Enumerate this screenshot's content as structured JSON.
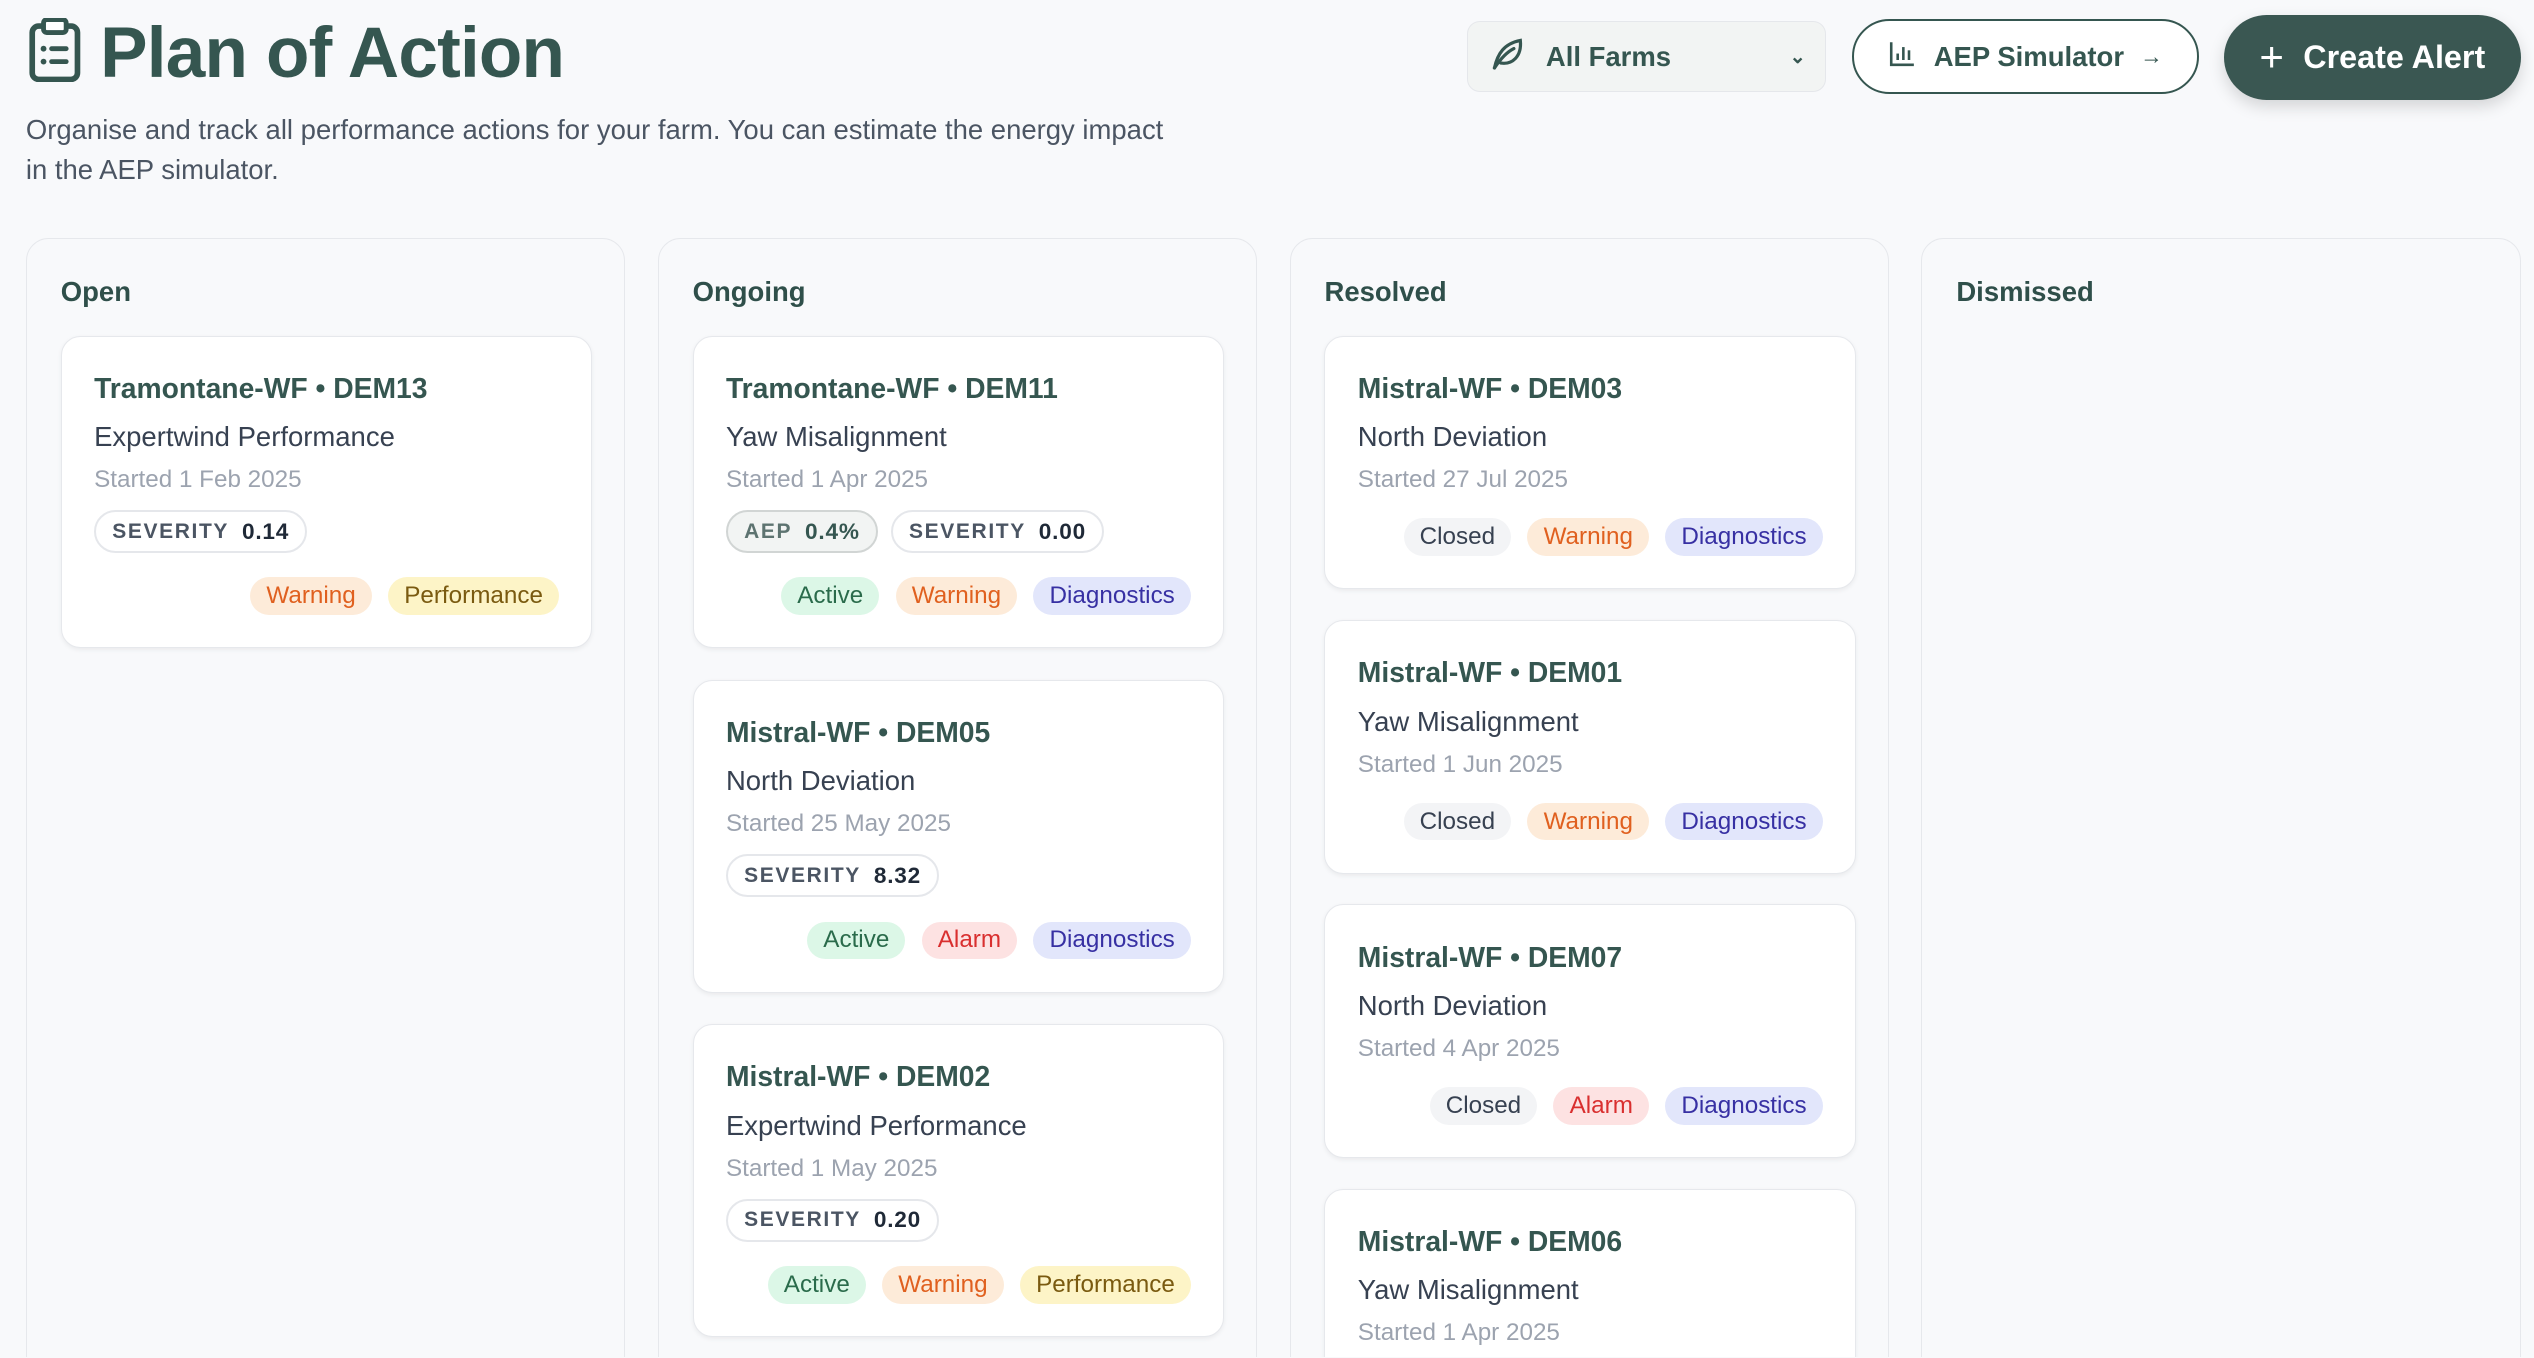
{
  "header": {
    "title": "Plan of Action",
    "description": "Organise and track all performance actions for your farm. You can estimate the energy impact in the AEP simulator.",
    "farm_select": "All Farms",
    "aep_button": "AEP Simulator",
    "create_button": "Create Alert"
  },
  "colors": {
    "accent": "#355650"
  },
  "columns": [
    {
      "title": "Open",
      "cards": [
        {
          "title": "Tramontane-WF • DEM13",
          "subtitle": "Expertwind Performance",
          "date": "Started 1 Feb 2025",
          "severity_label": "SEVERITY",
          "severity": "0.14",
          "tags": [
            {
              "label": "Warning",
              "kind": "warning"
            },
            {
              "label": "Performance",
              "kind": "perf"
            }
          ]
        }
      ]
    },
    {
      "title": "Ongoing",
      "cards": [
        {
          "title": "Tramontane-WF • DEM11",
          "subtitle": "Yaw Misalignment",
          "date": "Started 1 Apr 2025",
          "aep_label": "AEP",
          "aep": "0.4%",
          "severity_label": "SEVERITY",
          "severity": "0.00",
          "tags": [
            {
              "label": "Active",
              "kind": "active"
            },
            {
              "label": "Warning",
              "kind": "warning"
            },
            {
              "label": "Diagnostics",
              "kind": "diag"
            }
          ]
        },
        {
          "title": "Mistral-WF • DEM05",
          "subtitle": "North Deviation",
          "date": "Started 25 May 2025",
          "severity_label": "SEVERITY",
          "severity": "8.32",
          "tags": [
            {
              "label": "Active",
              "kind": "active"
            },
            {
              "label": "Alarm",
              "kind": "alarm"
            },
            {
              "label": "Diagnostics",
              "kind": "diag"
            }
          ]
        },
        {
          "title": "Mistral-WF • DEM02",
          "subtitle": "Expertwind Performance",
          "date": "Started 1 May 2025",
          "severity_label": "SEVERITY",
          "severity": "0.20",
          "tags": [
            {
              "label": "Active",
              "kind": "active"
            },
            {
              "label": "Warning",
              "kind": "warning"
            },
            {
              "label": "Performance",
              "kind": "perf"
            }
          ]
        }
      ]
    },
    {
      "title": "Resolved",
      "cards": [
        {
          "title": "Mistral-WF • DEM03",
          "subtitle": "North Deviation",
          "date": "Started 27 Jul 2025",
          "tags": [
            {
              "label": "Closed",
              "kind": "closed"
            },
            {
              "label": "Warning",
              "kind": "warning"
            },
            {
              "label": "Diagnostics",
              "kind": "diag"
            }
          ]
        },
        {
          "title": "Mistral-WF • DEM01",
          "subtitle": "Yaw Misalignment",
          "date": "Started 1 Jun 2025",
          "tags": [
            {
              "label": "Closed",
              "kind": "closed"
            },
            {
              "label": "Warning",
              "kind": "warning"
            },
            {
              "label": "Diagnostics",
              "kind": "diag"
            }
          ]
        },
        {
          "title": "Mistral-WF • DEM07",
          "subtitle": "North Deviation",
          "date": "Started 4 Apr 2025",
          "tags": [
            {
              "label": "Closed",
              "kind": "closed"
            },
            {
              "label": "Alarm",
              "kind": "alarm"
            },
            {
              "label": "Diagnostics",
              "kind": "diag"
            }
          ]
        },
        {
          "title": "Mistral-WF • DEM06",
          "subtitle": "Yaw Misalignment",
          "date": "Started 1 Apr 2025",
          "tags": []
        }
      ]
    },
    {
      "title": "Dismissed",
      "cards": []
    }
  ]
}
